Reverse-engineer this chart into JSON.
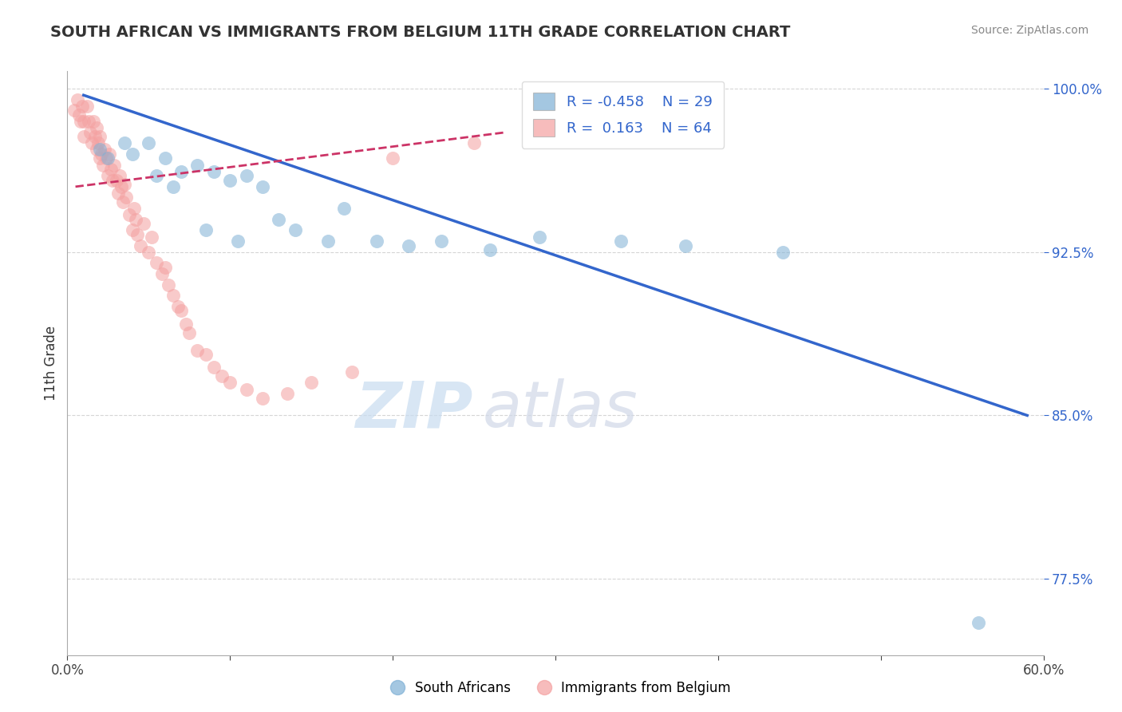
{
  "title": "SOUTH AFRICAN VS IMMIGRANTS FROM BELGIUM 11TH GRADE CORRELATION CHART",
  "source_text": "Source: ZipAtlas.com",
  "ylabel": "11th Grade",
  "watermark_zip": "ZIP",
  "watermark_atlas": "atlas",
  "xlim": [
    0.0,
    0.6
  ],
  "ylim": [
    0.74,
    1.008
  ],
  "xticks": [
    0.0,
    0.1,
    0.2,
    0.3,
    0.4,
    0.5,
    0.6
  ],
  "xticklabels": [
    "0.0%",
    "",
    "",
    "",
    "",
    "",
    "60.0%"
  ],
  "yticks": [
    0.775,
    0.85,
    0.925,
    1.0
  ],
  "yticklabels": [
    "77.5%",
    "85.0%",
    "92.5%",
    "100.0%"
  ],
  "legend_r_blue": "-0.458",
  "legend_n_blue": "29",
  "legend_r_pink": "0.163",
  "legend_n_pink": "64",
  "blue_color": "#7EB0D5",
  "pink_color": "#F4A0A0",
  "trend_blue_color": "#3366CC",
  "trend_pink_color": "#CC3366",
  "grid_color": "#CCCCCC",
  "background_color": "#FFFFFF",
  "title_color": "#3366CC",
  "blue_trend_x": [
    0.01,
    0.59
  ],
  "blue_trend_y": [
    0.997,
    0.85
  ],
  "pink_trend_x": [
    0.005,
    0.27
  ],
  "pink_trend_y": [
    0.955,
    0.98
  ],
  "blue_scatter_x": [
    0.02,
    0.025,
    0.035,
    0.04,
    0.05,
    0.055,
    0.06,
    0.065,
    0.07,
    0.08,
    0.085,
    0.09,
    0.1,
    0.105,
    0.11,
    0.12,
    0.13,
    0.14,
    0.16,
    0.17,
    0.19,
    0.21,
    0.23,
    0.26,
    0.29,
    0.34,
    0.38,
    0.44,
    0.56
  ],
  "blue_scatter_y": [
    0.972,
    0.968,
    0.975,
    0.97,
    0.975,
    0.96,
    0.968,
    0.955,
    0.962,
    0.965,
    0.935,
    0.962,
    0.958,
    0.93,
    0.96,
    0.955,
    0.94,
    0.935,
    0.93,
    0.945,
    0.93,
    0.928,
    0.93,
    0.926,
    0.932,
    0.93,
    0.928,
    0.925,
    0.755
  ],
  "pink_scatter_x": [
    0.004,
    0.006,
    0.007,
    0.008,
    0.009,
    0.01,
    0.01,
    0.012,
    0.013,
    0.014,
    0.015,
    0.016,
    0.017,
    0.018,
    0.018,
    0.019,
    0.02,
    0.02,
    0.021,
    0.022,
    0.023,
    0.024,
    0.025,
    0.026,
    0.027,
    0.028,
    0.029,
    0.03,
    0.031,
    0.032,
    0.033,
    0.034,
    0.035,
    0.036,
    0.038,
    0.04,
    0.041,
    0.042,
    0.043,
    0.045,
    0.047,
    0.05,
    0.052,
    0.055,
    0.058,
    0.06,
    0.062,
    0.065,
    0.068,
    0.07,
    0.073,
    0.075,
    0.08,
    0.085,
    0.09,
    0.095,
    0.1,
    0.11,
    0.12,
    0.135,
    0.15,
    0.175,
    0.2,
    0.25
  ],
  "pink_scatter_y": [
    0.99,
    0.995,
    0.988,
    0.985,
    0.992,
    0.985,
    0.978,
    0.992,
    0.985,
    0.98,
    0.975,
    0.985,
    0.978,
    0.972,
    0.982,
    0.975,
    0.968,
    0.978,
    0.97,
    0.965,
    0.972,
    0.968,
    0.96,
    0.97,
    0.963,
    0.958,
    0.965,
    0.958,
    0.952,
    0.96,
    0.955,
    0.948,
    0.956,
    0.95,
    0.942,
    0.935,
    0.945,
    0.94,
    0.933,
    0.928,
    0.938,
    0.925,
    0.932,
    0.92,
    0.915,
    0.918,
    0.91,
    0.905,
    0.9,
    0.898,
    0.892,
    0.888,
    0.88,
    0.878,
    0.872,
    0.868,
    0.865,
    0.862,
    0.858,
    0.86,
    0.865,
    0.87,
    0.968,
    0.975
  ]
}
